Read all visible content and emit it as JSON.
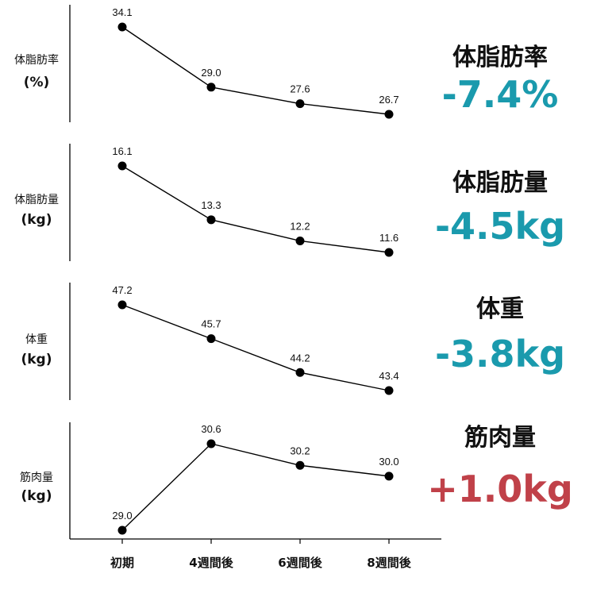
{
  "colors": {
    "decrease": "#1a9aad",
    "increase": "#c04149",
    "line": "#000000",
    "text": "#111111"
  },
  "chart_data": [
    {
      "type": "line",
      "categories": [
        "初期",
        "4週間後",
        "6週間後",
        "8週間後"
      ],
      "ylabel": "体脂肪率",
      "yunit": "(%)",
      "values": [
        34.1,
        29.0,
        27.6,
        26.7
      ],
      "value_labels": [
        "34.1",
        "29.0",
        "27.6",
        "26.7"
      ],
      "summary_title": "体脂肪率",
      "summary_value": "-7.4%",
      "trend": "decrease"
    },
    {
      "type": "line",
      "categories": [
        "初期",
        "4週間後",
        "6週間後",
        "8週間後"
      ],
      "ylabel": "体脂肪量",
      "yunit": "(kg)",
      "values": [
        16.1,
        13.3,
        12.2,
        11.6
      ],
      "value_labels": [
        "16.1",
        "13.3",
        "12.2",
        "11.6"
      ],
      "summary_title": "体脂肪量",
      "summary_value": "-4.5kg",
      "trend": "decrease"
    },
    {
      "type": "line",
      "categories": [
        "初期",
        "4週間後",
        "6週間後",
        "8週間後"
      ],
      "ylabel": "体重",
      "yunit": "(kg)",
      "values": [
        47.2,
        45.7,
        44.2,
        43.4
      ],
      "value_labels": [
        "47.2",
        "45.7",
        "44.2",
        "43.4"
      ],
      "summary_title": "体重",
      "summary_value": "-3.8kg",
      "trend": "decrease"
    },
    {
      "type": "line",
      "categories": [
        "初期",
        "4週間後",
        "6週間後",
        "8週間後"
      ],
      "ylabel": "筋肉量",
      "yunit": "(kg)",
      "values": [
        29.0,
        30.6,
        30.2,
        30.0
      ],
      "value_labels": [
        "29.0",
        "30.6",
        "30.2",
        "30.0"
      ],
      "summary_title": "筋肉量",
      "summary_value": "+1.0kg",
      "trend": "increase"
    }
  ],
  "x_ticks": [
    "初期",
    "4週間後",
    "6週間後",
    "8週間後"
  ]
}
